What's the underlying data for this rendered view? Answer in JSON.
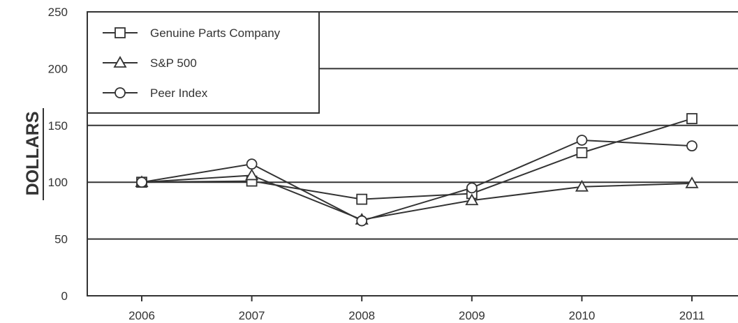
{
  "chart_data": {
    "type": "line",
    "title": "",
    "xlabel": "",
    "ylabel": "DOLLARS",
    "categories": [
      "2006",
      "2007",
      "2008",
      "2009",
      "2010",
      "2011"
    ],
    "ylim": [
      0,
      250
    ],
    "yticks": [
      "0",
      "50",
      "100",
      "150",
      "200",
      "250"
    ],
    "grid": "horizontal",
    "legend_position": "top-left",
    "series": [
      {
        "name": "Genuine Parts Company",
        "marker": "square",
        "values": [
          100,
          101,
          85,
          90,
          126,
          156
        ]
      },
      {
        "name": "S&P 500",
        "marker": "triangle",
        "values": [
          100,
          106,
          67,
          84,
          96,
          99
        ]
      },
      {
        "name": "Peer Index",
        "marker": "circle",
        "values": [
          100,
          116,
          66,
          95,
          137,
          132
        ]
      }
    ],
    "colors": {
      "line": "#333333",
      "marker_fill": "#ffffff"
    }
  }
}
